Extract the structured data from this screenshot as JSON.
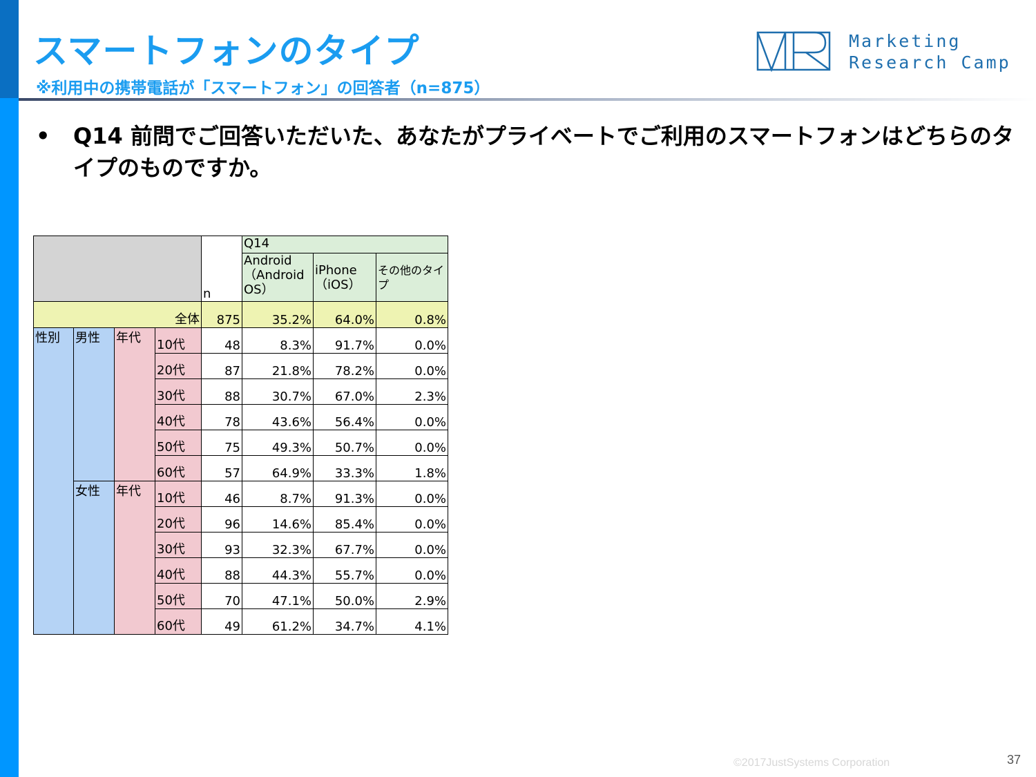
{
  "header": {
    "title": "スマートフォンのタイプ",
    "subtitle": "※利用中の携帯電話が「スマートフォン」の回答者（n=875）"
  },
  "logo": {
    "line1": "Marketing",
    "line2": "Research Camp",
    "color": "#1f6fae"
  },
  "question": {
    "bullet": "•",
    "text": "Q14 前問でご回答いただいた、あなたがプライベートでご利用のスマートフォンはどちらのタイプのものですか。"
  },
  "table": {
    "n_header": "n",
    "group_header": "Q14",
    "columns": [
      "Android（Android OS）",
      "iPhone（iOS）",
      "その他のタイプ"
    ],
    "total": {
      "label": "全体",
      "n": "875",
      "values": [
        "35.2%",
        "64.0%",
        "0.8%"
      ]
    },
    "dim1_label": "性別",
    "groups": [
      {
        "label": "男性",
        "sub_label": "年代",
        "rows": [
          {
            "age": "10代",
            "n": "48",
            "values": [
              "8.3%",
              "91.7%",
              "0.0%"
            ]
          },
          {
            "age": "20代",
            "n": "87",
            "values": [
              "21.8%",
              "78.2%",
              "0.0%"
            ]
          },
          {
            "age": "30代",
            "n": "88",
            "values": [
              "30.7%",
              "67.0%",
              "2.3%"
            ]
          },
          {
            "age": "40代",
            "n": "78",
            "values": [
              "43.6%",
              "56.4%",
              "0.0%"
            ]
          },
          {
            "age": "50代",
            "n": "75",
            "values": [
              "49.3%",
              "50.7%",
              "0.0%"
            ]
          },
          {
            "age": "60代",
            "n": "57",
            "values": [
              "64.9%",
              "33.3%",
              "1.8%"
            ]
          }
        ]
      },
      {
        "label": "女性",
        "sub_label": "年代",
        "rows": [
          {
            "age": "10代",
            "n": "46",
            "values": [
              "8.7%",
              "91.3%",
              "0.0%"
            ]
          },
          {
            "age": "20代",
            "n": "96",
            "values": [
              "14.6%",
              "85.4%",
              "0.0%"
            ]
          },
          {
            "age": "30代",
            "n": "93",
            "values": [
              "32.3%",
              "67.7%",
              "0.0%"
            ]
          },
          {
            "age": "40代",
            "n": "88",
            "values": [
              "44.3%",
              "55.7%",
              "0.0%"
            ]
          },
          {
            "age": "50代",
            "n": "70",
            "values": [
              "47.1%",
              "50.0%",
              "2.9%"
            ]
          },
          {
            "age": "60代",
            "n": "49",
            "values": [
              "61.2%",
              "34.7%",
              "4.1%"
            ]
          }
        ]
      }
    ]
  },
  "footer": {
    "copyright": "©2017JustSystems Corporation",
    "page_number": "37"
  },
  "colors": {
    "title_blue": "#1a9cf0",
    "sidebar_dark": "#0a6fc2",
    "sidebar_light": "#0096ff",
    "header_gray": "#d4d4d4",
    "header_green": "#dbeed9",
    "total_yellow": "#eef3b2",
    "dim_blue": "#b5d3f5",
    "dim_pink": "#f2c9d0"
  }
}
